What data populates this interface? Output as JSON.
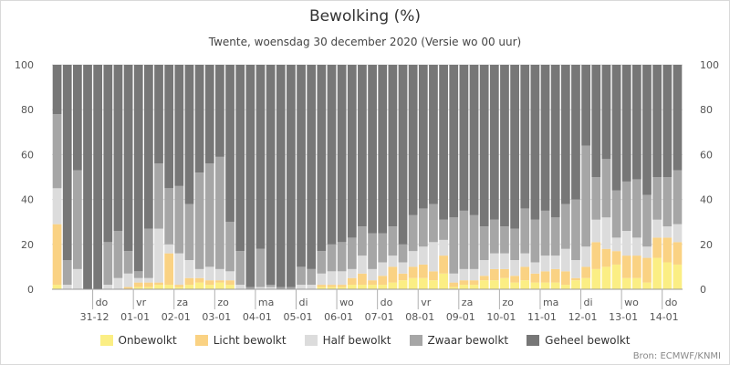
{
  "chart_data": {
    "type": "bar",
    "stacked": true,
    "title": "Bewolking (%)",
    "subtitle": "Twente, woensdag 30 december 2020 (Versie wo 00 uur)",
    "ylim": [
      0,
      100
    ],
    "yticks": [
      0,
      20,
      40,
      60,
      80,
      100
    ],
    "grid": true,
    "legend_position": "bottom",
    "day_labels": [
      {
        "day": "do",
        "date": "31-12",
        "index": 4
      },
      {
        "day": "vr",
        "date": "01-01",
        "index": 8
      },
      {
        "day": "za",
        "date": "02-01",
        "index": 12
      },
      {
        "day": "zo",
        "date": "03-01",
        "index": 16
      },
      {
        "day": "ma",
        "date": "04-01",
        "index": 20
      },
      {
        "day": "di",
        "date": "05-01",
        "index": 24
      },
      {
        "day": "wo",
        "date": "06-01",
        "index": 28
      },
      {
        "day": "do",
        "date": "07-01",
        "index": 32
      },
      {
        "day": "vr",
        "date": "08-01",
        "index": 36
      },
      {
        "day": "za",
        "date": "09-01",
        "index": 40
      },
      {
        "day": "zo",
        "date": "10-01",
        "index": 44
      },
      {
        "day": "ma",
        "date": "11-01",
        "index": 48
      },
      {
        "day": "di",
        "date": "12-01",
        "index": 52
      },
      {
        "day": "wo",
        "date": "13-01",
        "index": 56
      },
      {
        "day": "do",
        "date": "14-01",
        "index": 60
      }
    ],
    "series": [
      {
        "name": "Onbewolkt",
        "color": "#fbee84",
        "values": [
          2,
          0,
          0,
          0,
          0,
          0,
          0,
          0,
          1,
          1,
          2,
          2,
          1,
          2,
          3,
          2,
          3,
          2,
          0,
          0,
          0,
          0,
          0,
          0,
          0,
          0,
          1,
          1,
          1,
          2,
          2,
          2,
          2,
          3,
          4,
          5,
          5,
          4,
          7,
          1,
          2,
          2,
          4,
          4,
          5,
          3,
          4,
          3,
          3,
          3,
          2,
          4,
          5,
          9,
          10,
          11,
          5,
          5,
          3,
          14,
          12,
          11
        ]
      },
      {
        "name": "Licht bewolkt",
        "color": "#fad283",
        "values": [
          27,
          0,
          0,
          0,
          0,
          0,
          0,
          1,
          2,
          2,
          1,
          14,
          1,
          3,
          2,
          2,
          1,
          2,
          0,
          0,
          0,
          0,
          0,
          0,
          0,
          0,
          1,
          1,
          1,
          3,
          5,
          2,
          4,
          7,
          3,
          5,
          6,
          4,
          8,
          2,
          2,
          2,
          2,
          5,
          4,
          3,
          6,
          4,
          5,
          6,
          6,
          1,
          5,
          12,
          8,
          6,
          10,
          10,
          11,
          9,
          11,
          10
        ]
      },
      {
        "name": "Half bewolkt",
        "color": "#dcdcdc",
        "values": [
          16,
          2,
          9,
          0,
          0,
          2,
          5,
          6,
          2,
          2,
          24,
          4,
          14,
          8,
          4,
          6,
          5,
          4,
          2,
          0,
          1,
          1,
          0,
          0,
          2,
          2,
          5,
          6,
          6,
          4,
          8,
          5,
          6,
          5,
          5,
          7,
          8,
          13,
          7,
          4,
          5,
          5,
          7,
          7,
          7,
          7,
          6,
          5,
          7,
          6,
          10,
          8,
          9,
          10,
          14,
          6,
          11,
          8,
          5,
          8,
          5,
          8
        ]
      },
      {
        "name": "Zwaar bewolkt",
        "color": "#a6a6a6",
        "values": [
          33,
          11,
          44,
          0,
          0,
          19,
          21,
          10,
          3,
          22,
          29,
          25,
          30,
          25,
          43,
          46,
          50,
          22,
          15,
          1,
          17,
          1,
          1,
          1,
          8,
          7,
          10,
          12,
          13,
          14,
          13,
          16,
          13,
          13,
          8,
          16,
          17,
          17,
          9,
          25,
          26,
          24,
          15,
          15,
          12,
          14,
          20,
          19,
          20,
          17,
          20,
          27,
          45,
          19,
          26,
          21,
          22,
          26,
          23,
          19,
          22,
          24
        ]
      },
      {
        "name": "Geheel bewolkt",
        "color": "#777777",
        "values": [
          22,
          87,
          47,
          100,
          100,
          79,
          74,
          83,
          92,
          73,
          44,
          55,
          54,
          62,
          48,
          44,
          41,
          70,
          83,
          99,
          82,
          98,
          99,
          99,
          90,
          91,
          83,
          80,
          79,
          77,
          72,
          75,
          75,
          72,
          80,
          67,
          64,
          62,
          69,
          68,
          65,
          67,
          72,
          69,
          72,
          73,
          64,
          69,
          65,
          68,
          62,
          60,
          36,
          50,
          42,
          56,
          52,
          51,
          58,
          50,
          50,
          47
        ]
      }
    ]
  },
  "source": "Bron: ECMWF/KNMI"
}
